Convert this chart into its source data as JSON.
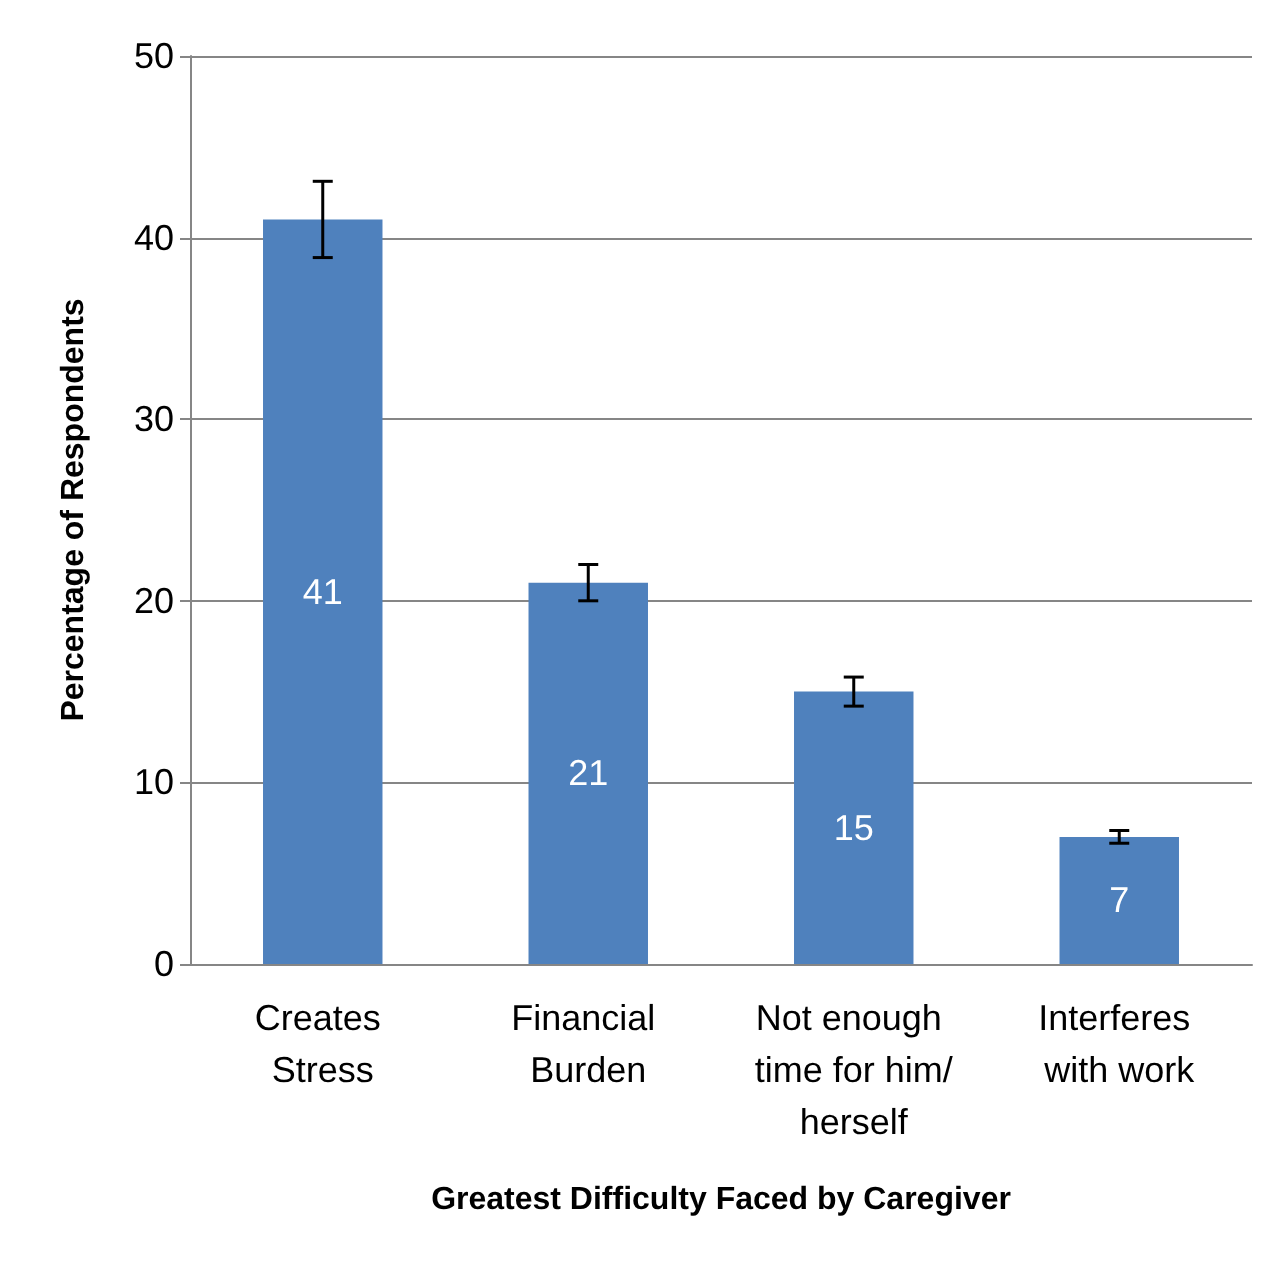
{
  "chart_data": {
    "type": "bar",
    "xlabel": "Greatest Difficulty Faced by Caregiver",
    "ylabel": "Percentage of Respondents",
    "categories": [
      "Creates Stress",
      "Financial Burden",
      "Not enough time for him/herself",
      "Interferes with work"
    ],
    "values": [
      41,
      21,
      15,
      7
    ],
    "errors": [
      2.1,
      1,
      0.8,
      0.35
    ],
    "color": "#4f81bd",
    "ylim": [
      0,
      50
    ],
    "yticks": [
      0,
      10,
      20,
      30,
      40,
      50
    ],
    "grid": "y",
    "data_labels": true
  }
}
